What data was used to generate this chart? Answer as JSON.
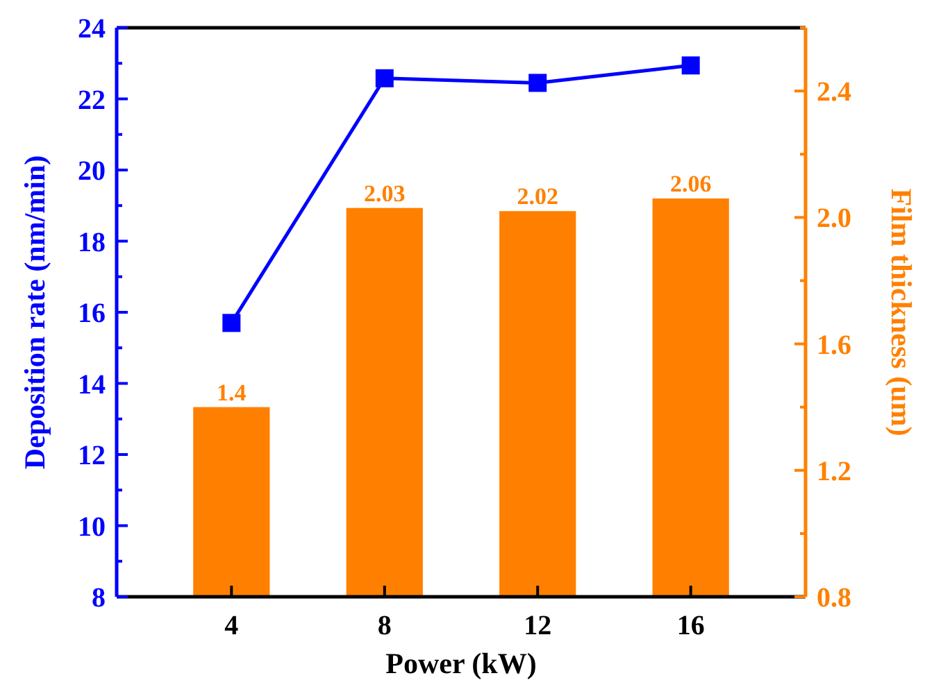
{
  "chart_data": {
    "type": "bar",
    "xlabel": "Power (kW)",
    "ylabel": "Deposition rate (nm/min)",
    "y2label": "Film thickness (um)",
    "categories": [
      "4",
      "8",
      "12",
      "16"
    ],
    "series": [
      {
        "axis": "y2",
        "color": "#ff8000",
        "values": [
          1.4,
          2.03,
          2.02,
          2.06
        ],
        "value_labels": [
          "1.4",
          "2.03",
          "2.02",
          "2.06"
        ]
      },
      {
        "type": "line",
        "axis": "y",
        "color": "#0000ff",
        "values": [
          15.7,
          22.58,
          22.45,
          22.94
        ],
        "marker": "square",
        "line_style": "solid"
      }
    ],
    "ylim": [
      8,
      24
    ],
    "yticks": [
      8,
      10,
      12,
      14,
      16,
      18,
      20,
      22,
      24
    ],
    "y2lim": [
      0.8,
      2.6
    ],
    "y2ticks": [
      "0.8",
      "1.2",
      "1.6",
      "2.0",
      "2.4"
    ],
    "grid": false
  }
}
